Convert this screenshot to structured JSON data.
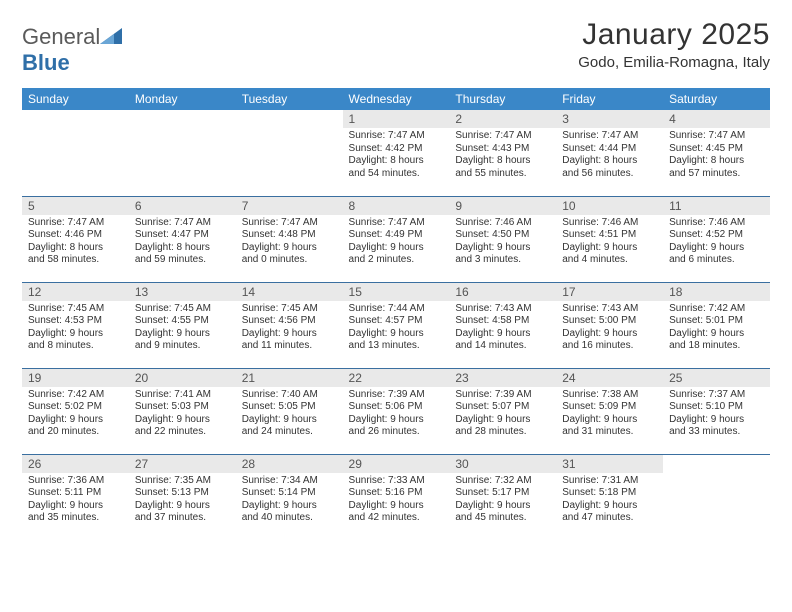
{
  "brand": {
    "name_a": "General",
    "name_b": "Blue"
  },
  "title": "January 2025",
  "location": "Godo, Emilia-Romagna, Italy",
  "colors": {
    "header_bg": "#3a87c8",
    "header_text": "#ffffff",
    "daynum_bg": "#e9e9e9",
    "row_border": "#3a6fa0",
    "brand_gray": "#5a5a5a",
    "brand_blue": "#2f6fa8"
  },
  "weekdays": [
    "Sunday",
    "Monday",
    "Tuesday",
    "Wednesday",
    "Thursday",
    "Friday",
    "Saturday"
  ],
  "weeks": [
    [
      null,
      null,
      null,
      {
        "n": "1",
        "sr": "Sunrise: 7:47 AM",
        "ss": "Sunset: 4:42 PM",
        "d1": "Daylight: 8 hours",
        "d2": "and 54 minutes."
      },
      {
        "n": "2",
        "sr": "Sunrise: 7:47 AM",
        "ss": "Sunset: 4:43 PM",
        "d1": "Daylight: 8 hours",
        "d2": "and 55 minutes."
      },
      {
        "n": "3",
        "sr": "Sunrise: 7:47 AM",
        "ss": "Sunset: 4:44 PM",
        "d1": "Daylight: 8 hours",
        "d2": "and 56 minutes."
      },
      {
        "n": "4",
        "sr": "Sunrise: 7:47 AM",
        "ss": "Sunset: 4:45 PM",
        "d1": "Daylight: 8 hours",
        "d2": "and 57 minutes."
      }
    ],
    [
      {
        "n": "5",
        "sr": "Sunrise: 7:47 AM",
        "ss": "Sunset: 4:46 PM",
        "d1": "Daylight: 8 hours",
        "d2": "and 58 minutes."
      },
      {
        "n": "6",
        "sr": "Sunrise: 7:47 AM",
        "ss": "Sunset: 4:47 PM",
        "d1": "Daylight: 8 hours",
        "d2": "and 59 minutes."
      },
      {
        "n": "7",
        "sr": "Sunrise: 7:47 AM",
        "ss": "Sunset: 4:48 PM",
        "d1": "Daylight: 9 hours",
        "d2": "and 0 minutes."
      },
      {
        "n": "8",
        "sr": "Sunrise: 7:47 AM",
        "ss": "Sunset: 4:49 PM",
        "d1": "Daylight: 9 hours",
        "d2": "and 2 minutes."
      },
      {
        "n": "9",
        "sr": "Sunrise: 7:46 AM",
        "ss": "Sunset: 4:50 PM",
        "d1": "Daylight: 9 hours",
        "d2": "and 3 minutes."
      },
      {
        "n": "10",
        "sr": "Sunrise: 7:46 AM",
        "ss": "Sunset: 4:51 PM",
        "d1": "Daylight: 9 hours",
        "d2": "and 4 minutes."
      },
      {
        "n": "11",
        "sr": "Sunrise: 7:46 AM",
        "ss": "Sunset: 4:52 PM",
        "d1": "Daylight: 9 hours",
        "d2": "and 6 minutes."
      }
    ],
    [
      {
        "n": "12",
        "sr": "Sunrise: 7:45 AM",
        "ss": "Sunset: 4:53 PM",
        "d1": "Daylight: 9 hours",
        "d2": "and 8 minutes."
      },
      {
        "n": "13",
        "sr": "Sunrise: 7:45 AM",
        "ss": "Sunset: 4:55 PM",
        "d1": "Daylight: 9 hours",
        "d2": "and 9 minutes."
      },
      {
        "n": "14",
        "sr": "Sunrise: 7:45 AM",
        "ss": "Sunset: 4:56 PM",
        "d1": "Daylight: 9 hours",
        "d2": "and 11 minutes."
      },
      {
        "n": "15",
        "sr": "Sunrise: 7:44 AM",
        "ss": "Sunset: 4:57 PM",
        "d1": "Daylight: 9 hours",
        "d2": "and 13 minutes."
      },
      {
        "n": "16",
        "sr": "Sunrise: 7:43 AM",
        "ss": "Sunset: 4:58 PM",
        "d1": "Daylight: 9 hours",
        "d2": "and 14 minutes."
      },
      {
        "n": "17",
        "sr": "Sunrise: 7:43 AM",
        "ss": "Sunset: 5:00 PM",
        "d1": "Daylight: 9 hours",
        "d2": "and 16 minutes."
      },
      {
        "n": "18",
        "sr": "Sunrise: 7:42 AM",
        "ss": "Sunset: 5:01 PM",
        "d1": "Daylight: 9 hours",
        "d2": "and 18 minutes."
      }
    ],
    [
      {
        "n": "19",
        "sr": "Sunrise: 7:42 AM",
        "ss": "Sunset: 5:02 PM",
        "d1": "Daylight: 9 hours",
        "d2": "and 20 minutes."
      },
      {
        "n": "20",
        "sr": "Sunrise: 7:41 AM",
        "ss": "Sunset: 5:03 PM",
        "d1": "Daylight: 9 hours",
        "d2": "and 22 minutes."
      },
      {
        "n": "21",
        "sr": "Sunrise: 7:40 AM",
        "ss": "Sunset: 5:05 PM",
        "d1": "Daylight: 9 hours",
        "d2": "and 24 minutes."
      },
      {
        "n": "22",
        "sr": "Sunrise: 7:39 AM",
        "ss": "Sunset: 5:06 PM",
        "d1": "Daylight: 9 hours",
        "d2": "and 26 minutes."
      },
      {
        "n": "23",
        "sr": "Sunrise: 7:39 AM",
        "ss": "Sunset: 5:07 PM",
        "d1": "Daylight: 9 hours",
        "d2": "and 28 minutes."
      },
      {
        "n": "24",
        "sr": "Sunrise: 7:38 AM",
        "ss": "Sunset: 5:09 PM",
        "d1": "Daylight: 9 hours",
        "d2": "and 31 minutes."
      },
      {
        "n": "25",
        "sr": "Sunrise: 7:37 AM",
        "ss": "Sunset: 5:10 PM",
        "d1": "Daylight: 9 hours",
        "d2": "and 33 minutes."
      }
    ],
    [
      {
        "n": "26",
        "sr": "Sunrise: 7:36 AM",
        "ss": "Sunset: 5:11 PM",
        "d1": "Daylight: 9 hours",
        "d2": "and 35 minutes."
      },
      {
        "n": "27",
        "sr": "Sunrise: 7:35 AM",
        "ss": "Sunset: 5:13 PM",
        "d1": "Daylight: 9 hours",
        "d2": "and 37 minutes."
      },
      {
        "n": "28",
        "sr": "Sunrise: 7:34 AM",
        "ss": "Sunset: 5:14 PM",
        "d1": "Daylight: 9 hours",
        "d2": "and 40 minutes."
      },
      {
        "n": "29",
        "sr": "Sunrise: 7:33 AM",
        "ss": "Sunset: 5:16 PM",
        "d1": "Daylight: 9 hours",
        "d2": "and 42 minutes."
      },
      {
        "n": "30",
        "sr": "Sunrise: 7:32 AM",
        "ss": "Sunset: 5:17 PM",
        "d1": "Daylight: 9 hours",
        "d2": "and 45 minutes."
      },
      {
        "n": "31",
        "sr": "Sunrise: 7:31 AM",
        "ss": "Sunset: 5:18 PM",
        "d1": "Daylight: 9 hours",
        "d2": "and 47 minutes."
      },
      null
    ]
  ]
}
